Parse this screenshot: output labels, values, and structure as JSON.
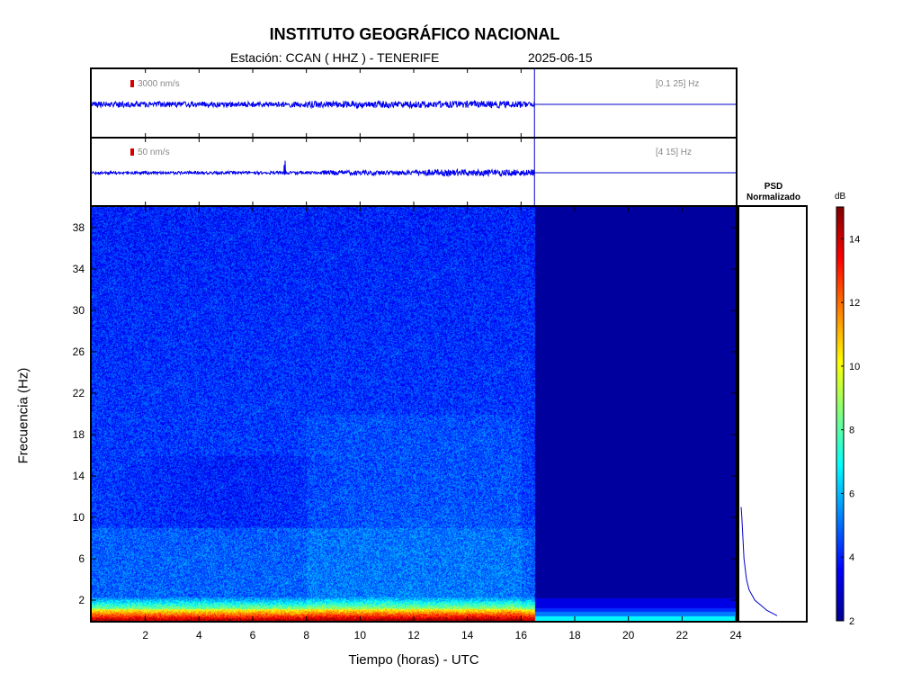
{
  "header": {
    "title": "INSTITUTO GEOGRÁFICO NACIONAL",
    "station_line": "Estación:  CCAN ( HHZ ) - TENERIFE",
    "date": "2025-06-15"
  },
  "traces": [
    {
      "scale_label": "3000 nm/s",
      "band_label": "[0.1 25] Hz",
      "data_until_hour": 16.5
    },
    {
      "scale_label": "50 nm/s",
      "band_label": "[4 15] Hz",
      "data_until_hour": 16.5,
      "event_hour": 7.2
    }
  ],
  "chart_data": {
    "type": "heatmap",
    "title": "INSTITUTO GEOGRÁFICO NACIONAL",
    "xlabel": "Tiempo (horas) - UTC",
    "ylabel": "Frecuencia  (Hz)",
    "xlim": [
      0,
      24
    ],
    "ylim": [
      0,
      40
    ],
    "xticks": [
      2,
      4,
      6,
      8,
      10,
      12,
      14,
      16,
      18,
      20,
      22,
      24
    ],
    "yticks": [
      2,
      6,
      10,
      14,
      18,
      22,
      26,
      30,
      34,
      38
    ],
    "data_until_hour": 16.5,
    "colorbar": {
      "label": "dB",
      "range": [
        2,
        15
      ],
      "ticks": [
        2,
        4,
        6,
        8,
        10,
        12,
        14
      ],
      "colors": [
        "#00008f",
        "#0000ff",
        "#0080ff",
        "#00ffff",
        "#80ff80",
        "#ffff00",
        "#ff8000",
        "#ff0000",
        "#800000"
      ]
    },
    "psd": {
      "title": "PSD Normalizado",
      "profile": [
        [
          0.5,
          1.0
        ],
        [
          1,
          0.72
        ],
        [
          2,
          0.38
        ],
        [
          3,
          0.22
        ],
        [
          4,
          0.15
        ],
        [
          6,
          0.08
        ],
        [
          8,
          0.05
        ],
        [
          10,
          0.02
        ],
        [
          11,
          0.0
        ]
      ]
    }
  }
}
